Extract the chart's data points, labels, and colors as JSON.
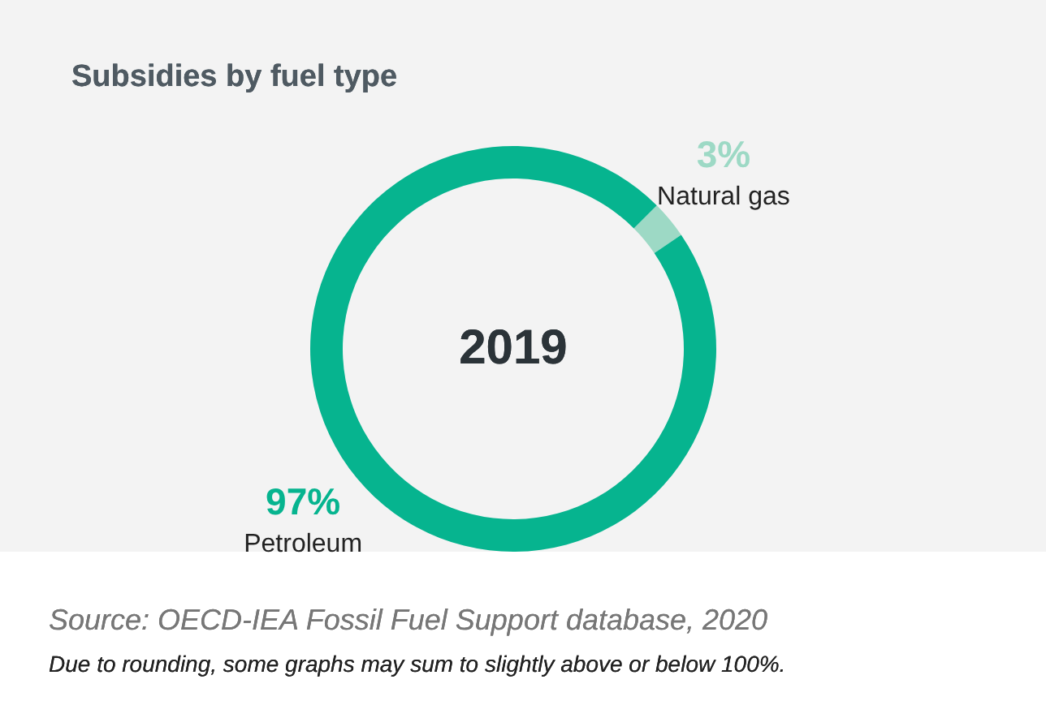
{
  "chart_data": {
    "type": "donut",
    "title": "Subsidies by fuel type",
    "categories": [
      "Natural gas",
      "Petroleum"
    ],
    "values": [
      3,
      97
    ],
    "value_labels": [
      "3%",
      "97%"
    ],
    "colors": [
      "#9dd9c5",
      "#06b48f"
    ],
    "annotations": [
      "2019",
      "Source: OECD-IEA Fossil Fuel Support database, 2020",
      "Due to rounding, some graphs may sum to slightly above or below 100%."
    ]
  }
}
